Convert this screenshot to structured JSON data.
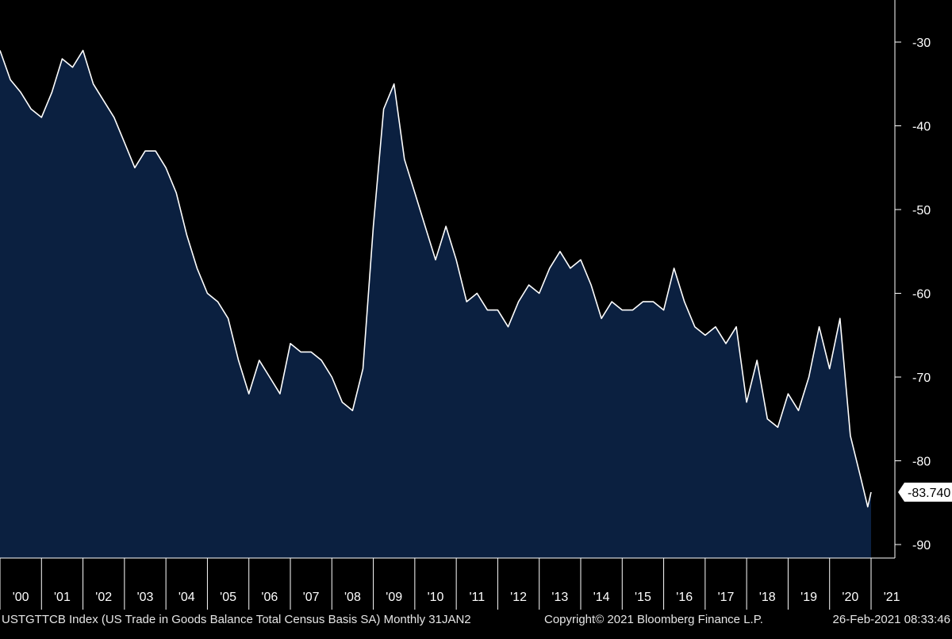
{
  "chart_data": {
    "type": "area",
    "title": "",
    "xlabel": "",
    "ylabel": "",
    "ylim": [
      -92.5,
      -26.5
    ],
    "y_ticks": [
      -30,
      -40,
      -50,
      -60,
      -70,
      -80,
      -90
    ],
    "x_tick_labels": [
      "'00",
      "'01",
      "'02",
      "'03",
      "'04",
      "'05",
      "'06",
      "'07",
      "'08",
      "'09",
      "'10",
      "'11",
      "'12",
      "'13",
      "'14",
      "'15",
      "'16",
      "'17",
      "'18",
      "'19",
      "'20",
      "'21"
    ],
    "last_value_label": "-83.740",
    "grid": false,
    "colors": {
      "fill": "#0b2040",
      "line": "#ffffff",
      "background": "#000000",
      "text": "#ffffff"
    },
    "series": [
      {
        "x": [
          2000.0,
          2000.25,
          2000.5,
          2000.75,
          2001.0,
          2001.25,
          2001.5,
          2001.75,
          2002.0,
          2002.25,
          2002.5,
          2002.75,
          2003.0,
          2003.25,
          2003.5,
          2003.75,
          2004.0,
          2004.25,
          2004.5,
          2004.75,
          2005.0,
          2005.25,
          2005.5,
          2005.75,
          2006.0,
          2006.25,
          2006.5,
          2006.75,
          2007.0,
          2007.25,
          2007.5,
          2007.75,
          2008.0,
          2008.25,
          2008.5,
          2008.75,
          2009.0,
          2009.25,
          2009.5,
          2009.75,
          2010.0,
          2010.25,
          2010.5,
          2010.75,
          2011.0,
          2011.25,
          2011.5,
          2011.75,
          2012.0,
          2012.25,
          2012.5,
          2012.75,
          2013.0,
          2013.25,
          2013.5,
          2013.75,
          2014.0,
          2014.25,
          2014.5,
          2014.75,
          2015.0,
          2015.25,
          2015.5,
          2015.75,
          2016.0,
          2016.25,
          2016.5,
          2016.75,
          2017.0,
          2017.25,
          2017.5,
          2017.75,
          2018.0,
          2018.25,
          2018.5,
          2018.75,
          2019.0,
          2019.25,
          2019.5,
          2019.75,
          2020.0,
          2020.25,
          2020.5,
          2020.75,
          2020.92,
          2021.0
        ],
        "y": [
          -31,
          -34.5,
          -36,
          -38,
          -39,
          -36,
          -32,
          -33,
          -31,
          -35,
          -37,
          -39,
          -42,
          -45,
          -43,
          -43,
          -45,
          -48,
          -53,
          -57,
          -60,
          -61,
          -63,
          -68,
          -72,
          -68,
          -70,
          -72,
          -66,
          -67,
          -67,
          -68,
          -70,
          -73,
          -74,
          -69,
          -52,
          -38,
          -35,
          -44,
          -48,
          -52,
          -56,
          -52,
          -56,
          -61,
          -60,
          -62,
          -62,
          -64,
          -61,
          -59,
          -60,
          -57,
          -55,
          -57,
          -56,
          -59,
          -63,
          -61,
          -62,
          -62,
          -61,
          -61,
          -62,
          -57,
          -61,
          -64,
          -65,
          -64,
          -66,
          -64,
          -73,
          -68,
          -75,
          -76,
          -72,
          -74,
          -70,
          -64,
          -69,
          -63,
          -77,
          -82,
          -85.5,
          -83.74
        ]
      }
    ]
  },
  "footer": {
    "ticker": "USTGTTCB Index (US Trade in Goods Balance Total Census Basis SA)  Monthly 31JAN2",
    "copyright": "Copyright© 2021 Bloomberg Finance L.P.",
    "timestamp": "26-Feb-2021 08:33:46"
  }
}
